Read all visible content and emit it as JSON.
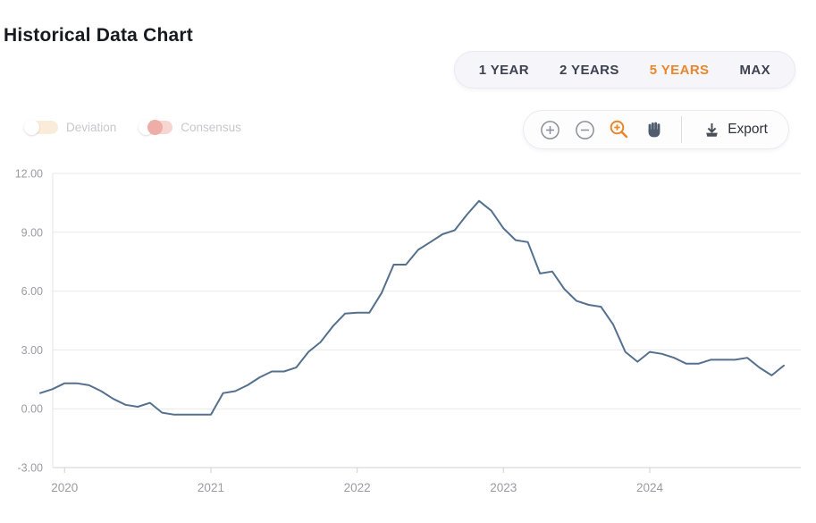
{
  "page": {
    "title": "Historical Data Chart"
  },
  "range_selector": {
    "active_color": "#e8872b",
    "options": [
      {
        "label": "1 YEAR",
        "active": false
      },
      {
        "label": "2 YEARS",
        "active": false
      },
      {
        "label": "5 YEARS",
        "active": true
      },
      {
        "label": "MAX",
        "active": false
      }
    ]
  },
  "series_toggles": [
    {
      "label": "Deviation",
      "state": "off",
      "track_color": "#f9ecd9"
    },
    {
      "label": "Consensus",
      "state": "off",
      "track_color": "#f7d6d2"
    }
  ],
  "toolbar": {
    "icons": [
      {
        "name": "zoom-in-icon",
        "active": false,
        "color": "#8a8f99"
      },
      {
        "name": "zoom-out-icon",
        "active": false,
        "color": "#8a8f99"
      },
      {
        "name": "zoom-selection-icon",
        "active": true,
        "color": "#e8872b"
      },
      {
        "name": "pan-icon",
        "active": false,
        "color": "#515c6e"
      }
    ],
    "export_label": "Export"
  },
  "chart_data": {
    "type": "line",
    "title": "Historical Data Chart",
    "legend": "none",
    "grid": "horizontal",
    "frequency": "monthly",
    "x_range_estimate": "Nov 2019 - Dec 2024",
    "ylim": [
      -3,
      12
    ],
    "y_ticks": [
      {
        "value": 12,
        "label": "12.00"
      },
      {
        "value": 9,
        "label": "9.00"
      },
      {
        "value": 6,
        "label": "6.00"
      },
      {
        "value": 3,
        "label": "3.00"
      },
      {
        "value": 0,
        "label": "0.00"
      },
      {
        "value": -3,
        "label": "-3.00"
      }
    ],
    "x_tick_labels": [
      "2020",
      "2021",
      "2022",
      "2023",
      "2024"
    ],
    "x_tick_point_indices": [
      2,
      14,
      26,
      38,
      50
    ],
    "line_color": "#54708e",
    "values": [
      0.8,
      1.0,
      1.3,
      1.3,
      1.2,
      0.9,
      0.5,
      0.2,
      0.1,
      0.3,
      -0.2,
      -0.3,
      -0.3,
      -0.3,
      -0.3,
      0.8,
      0.9,
      1.2,
      1.6,
      1.9,
      1.9,
      2.1,
      2.9,
      3.4,
      4.2,
      4.85,
      4.9,
      4.9,
      5.9,
      7.35,
      7.35,
      8.1,
      8.5,
      8.9,
      9.1,
      9.9,
      10.6,
      10.1,
      9.2,
      8.6,
      8.5,
      6.9,
      7.0,
      6.1,
      5.5,
      5.3,
      5.2,
      4.3,
      2.9,
      2.4,
      2.9,
      2.8,
      2.6,
      2.3,
      2.3,
      2.5,
      2.5,
      2.5,
      2.6,
      2.1,
      1.7,
      2.2
    ]
  }
}
